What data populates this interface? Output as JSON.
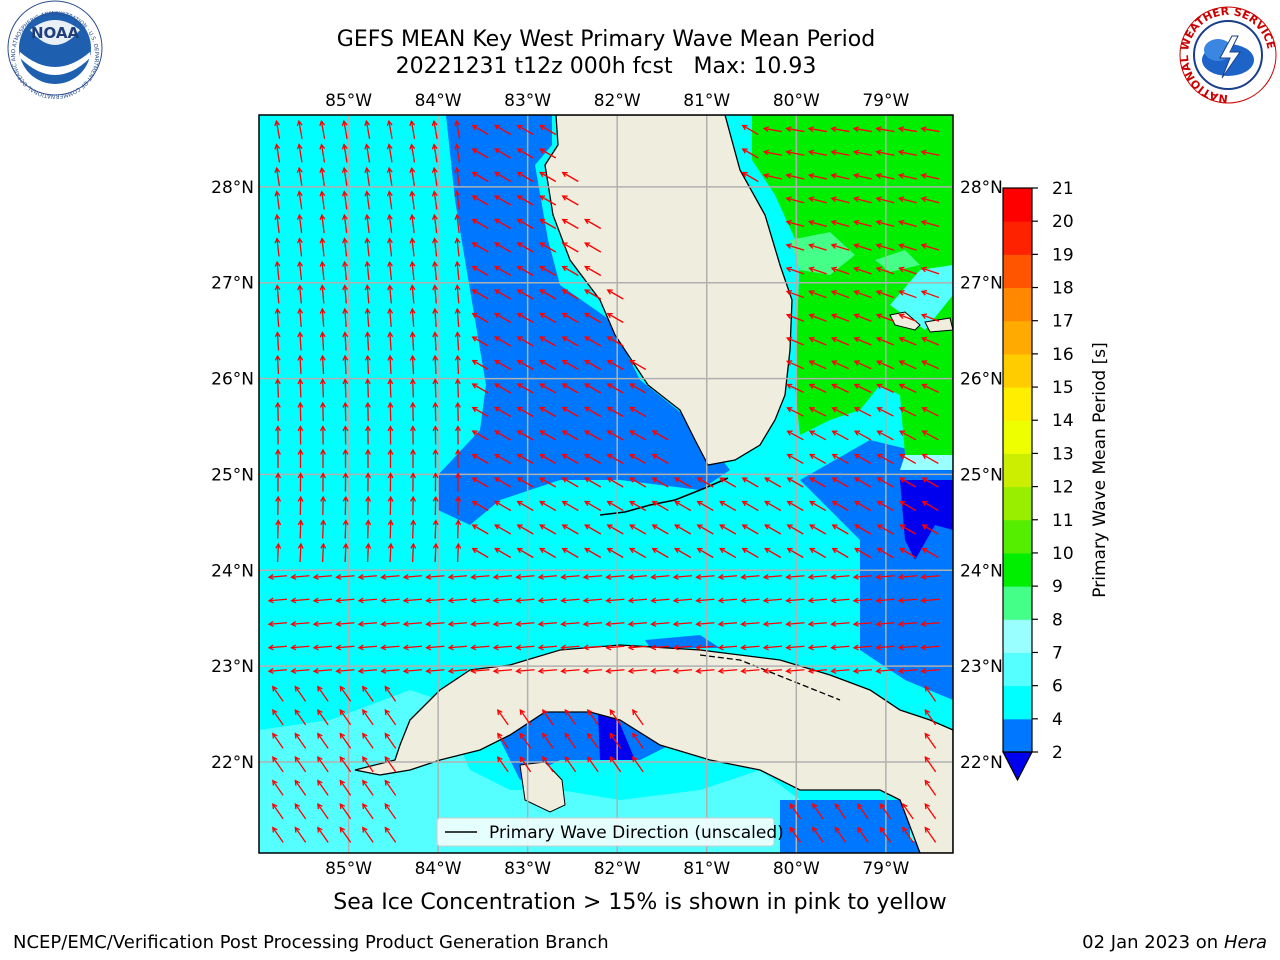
{
  "title": {
    "line1": "GEFS MEAN Key West Primary Wave Mean Period",
    "line2": "20221231 t12z 000h fcst   Max: 10.93"
  },
  "logos": {
    "left": {
      "name": "noaa-logo",
      "text": "NOAA",
      "ring_text": "NATIONAL OCEANIC AND ATMOSPHERIC ADMINISTRATION · U.S. DEPARTMENT OF COMMERCE"
    },
    "right": {
      "name": "nws-logo",
      "ring_text": "NATIONAL WEATHER SERVICE"
    }
  },
  "map": {
    "lon_range": [
      -86.0,
      -78.25
    ],
    "lat_range": [
      21.05,
      28.75
    ],
    "lon_ticks": [
      {
        "value": -85,
        "label": "85°W"
      },
      {
        "value": -84,
        "label": "84°W"
      },
      {
        "value": -83,
        "label": "83°W"
      },
      {
        "value": -82,
        "label": "82°W"
      },
      {
        "value": -81,
        "label": "81°W"
      },
      {
        "value": -80,
        "label": "80°W"
      },
      {
        "value": -79,
        "label": "79°W"
      }
    ],
    "lat_ticks": [
      {
        "value": 28,
        "label": "28°N"
      },
      {
        "value": 27,
        "label": "27°N"
      },
      {
        "value": 26,
        "label": "26°N"
      },
      {
        "value": 25,
        "label": "25°N"
      },
      {
        "value": 24,
        "label": "24°N"
      },
      {
        "value": 23,
        "label": "23°N"
      },
      {
        "value": 22,
        "label": "22°N"
      }
    ],
    "legend_label": "Primary Wave Direction (unscaled)",
    "land_color": "#efedde",
    "arrow_color": "#ff0000",
    "grid_color": "#b0b0b0"
  },
  "colorbar": {
    "label": "Primary Wave Mean Period [s]",
    "ticks": [
      2,
      4,
      6,
      7,
      8,
      9,
      10,
      11,
      12,
      13,
      14,
      15,
      16,
      17,
      18,
      19,
      20,
      21
    ],
    "tick_labels": [
      "2",
      "4",
      "6",
      "7",
      "8",
      "9",
      "10",
      "11",
      "12",
      "13",
      "14",
      "15",
      "16",
      "17",
      "18",
      "19",
      "20",
      "21"
    ],
    "under_color": "#0000ee",
    "colors": [
      "#0077ff",
      "#00ffff",
      "#55ffff",
      "#99ffff",
      "#44ff88",
      "#00ee00",
      "#55ee00",
      "#99ee00",
      "#ccee00",
      "#eeff00",
      "#ffee00",
      "#ffcc00",
      "#ffaa00",
      "#ff8800",
      "#ff5500",
      "#ff2200",
      "#ff0000"
    ]
  },
  "sea_ice_note": "Sea Ice Concentration > 15% is shown in pink to yellow",
  "footer": {
    "left": "NCEP/EMC/Verification Post Processing Product Generation Branch",
    "right_date": "02 Jan 2023 on ",
    "right_host": "Hera"
  }
}
